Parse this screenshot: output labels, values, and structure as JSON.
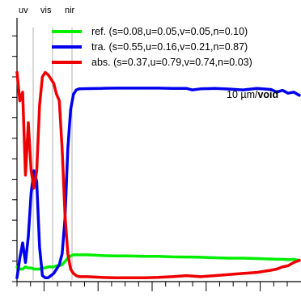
{
  "chart_data": {
    "type": "line",
    "title": "",
    "xlabel": "",
    "ylabel": "",
    "xlim": [
      0,
      100
    ],
    "ylim": [
      0,
      1
    ],
    "grid": false,
    "legend_position": "top-right",
    "band_markers": [
      {
        "label": "uv",
        "x": 2
      },
      {
        "label": "vis",
        "x": 10
      },
      {
        "label": "nir",
        "x": 18
      }
    ],
    "annotation": {
      "prefix": "10 µm/",
      "emphasis": "void"
    },
    "x": [
      0,
      1,
      2,
      3,
      4,
      5,
      6,
      7,
      8,
      9,
      10,
      11,
      12,
      13,
      14,
      15,
      16,
      17,
      18,
      19,
      20,
      21,
      22,
      25,
      30,
      35,
      40,
      45,
      50,
      55,
      60,
      62,
      65,
      70,
      75,
      80,
      85,
      90,
      92,
      94,
      96,
      98,
      100
    ],
    "series": [
      {
        "name": "ref.",
        "legend_label": "ref.  (s=0.08,u=0.05,v=0.05,n=0.10)",
        "color": "#00ee00",
        "values": [
          0.06,
          0.05,
          0.05,
          0.06,
          0.055,
          0.055,
          0.05,
          0.05,
          0.05,
          0.055,
          0.055,
          0.06,
          0.06,
          0.06,
          0.065,
          0.065,
          0.07,
          0.085,
          0.1,
          0.11,
          0.115,
          0.115,
          0.115,
          0.115,
          0.112,
          0.11,
          0.11,
          0.108,
          0.108,
          0.106,
          0.105,
          0.105,
          0.104,
          0.102,
          0.1,
          0.1,
          0.098,
          0.096,
          0.095,
          0.095,
          0.093,
          0.095,
          0.09
        ]
      },
      {
        "name": "tra.",
        "legend_label": "tra.  (s=0.55,u=0.16,v=0.21,n=0.87)",
        "color": "#0000ee",
        "values": [
          0.01,
          0.1,
          0.17,
          0.08,
          0.2,
          0.4,
          0.5,
          0.45,
          0.15,
          0.02,
          0.01,
          0.01,
          0.02,
          0.03,
          0.05,
          0.07,
          0.12,
          0.28,
          0.6,
          0.78,
          0.85,
          0.87,
          0.875,
          0.876,
          0.877,
          0.878,
          0.878,
          0.878,
          0.878,
          0.877,
          0.877,
          0.87,
          0.875,
          0.877,
          0.874,
          0.87,
          0.877,
          0.872,
          0.86,
          0.868,
          0.855,
          0.86,
          0.845
        ]
      },
      {
        "name": "abs.",
        "legend_label": "abs.  (s=0.37,u=0.79,v=0.74,n=0.03)",
        "color": "#ee0000",
        "values": [
          0.95,
          0.82,
          0.86,
          0.48,
          0.72,
          0.5,
          0.42,
          0.5,
          0.8,
          0.93,
          0.95,
          0.94,
          0.92,
          0.9,
          0.85,
          0.82,
          0.6,
          0.3,
          0.12,
          0.05,
          0.03,
          0.02,
          0.015,
          0.015,
          0.012,
          0.01,
          0.01,
          0.01,
          0.012,
          0.015,
          0.02,
          0.018,
          0.015,
          0.02,
          0.025,
          0.03,
          0.035,
          0.045,
          0.05,
          0.06,
          0.065,
          0.08,
          0.09
        ]
      }
    ]
  }
}
